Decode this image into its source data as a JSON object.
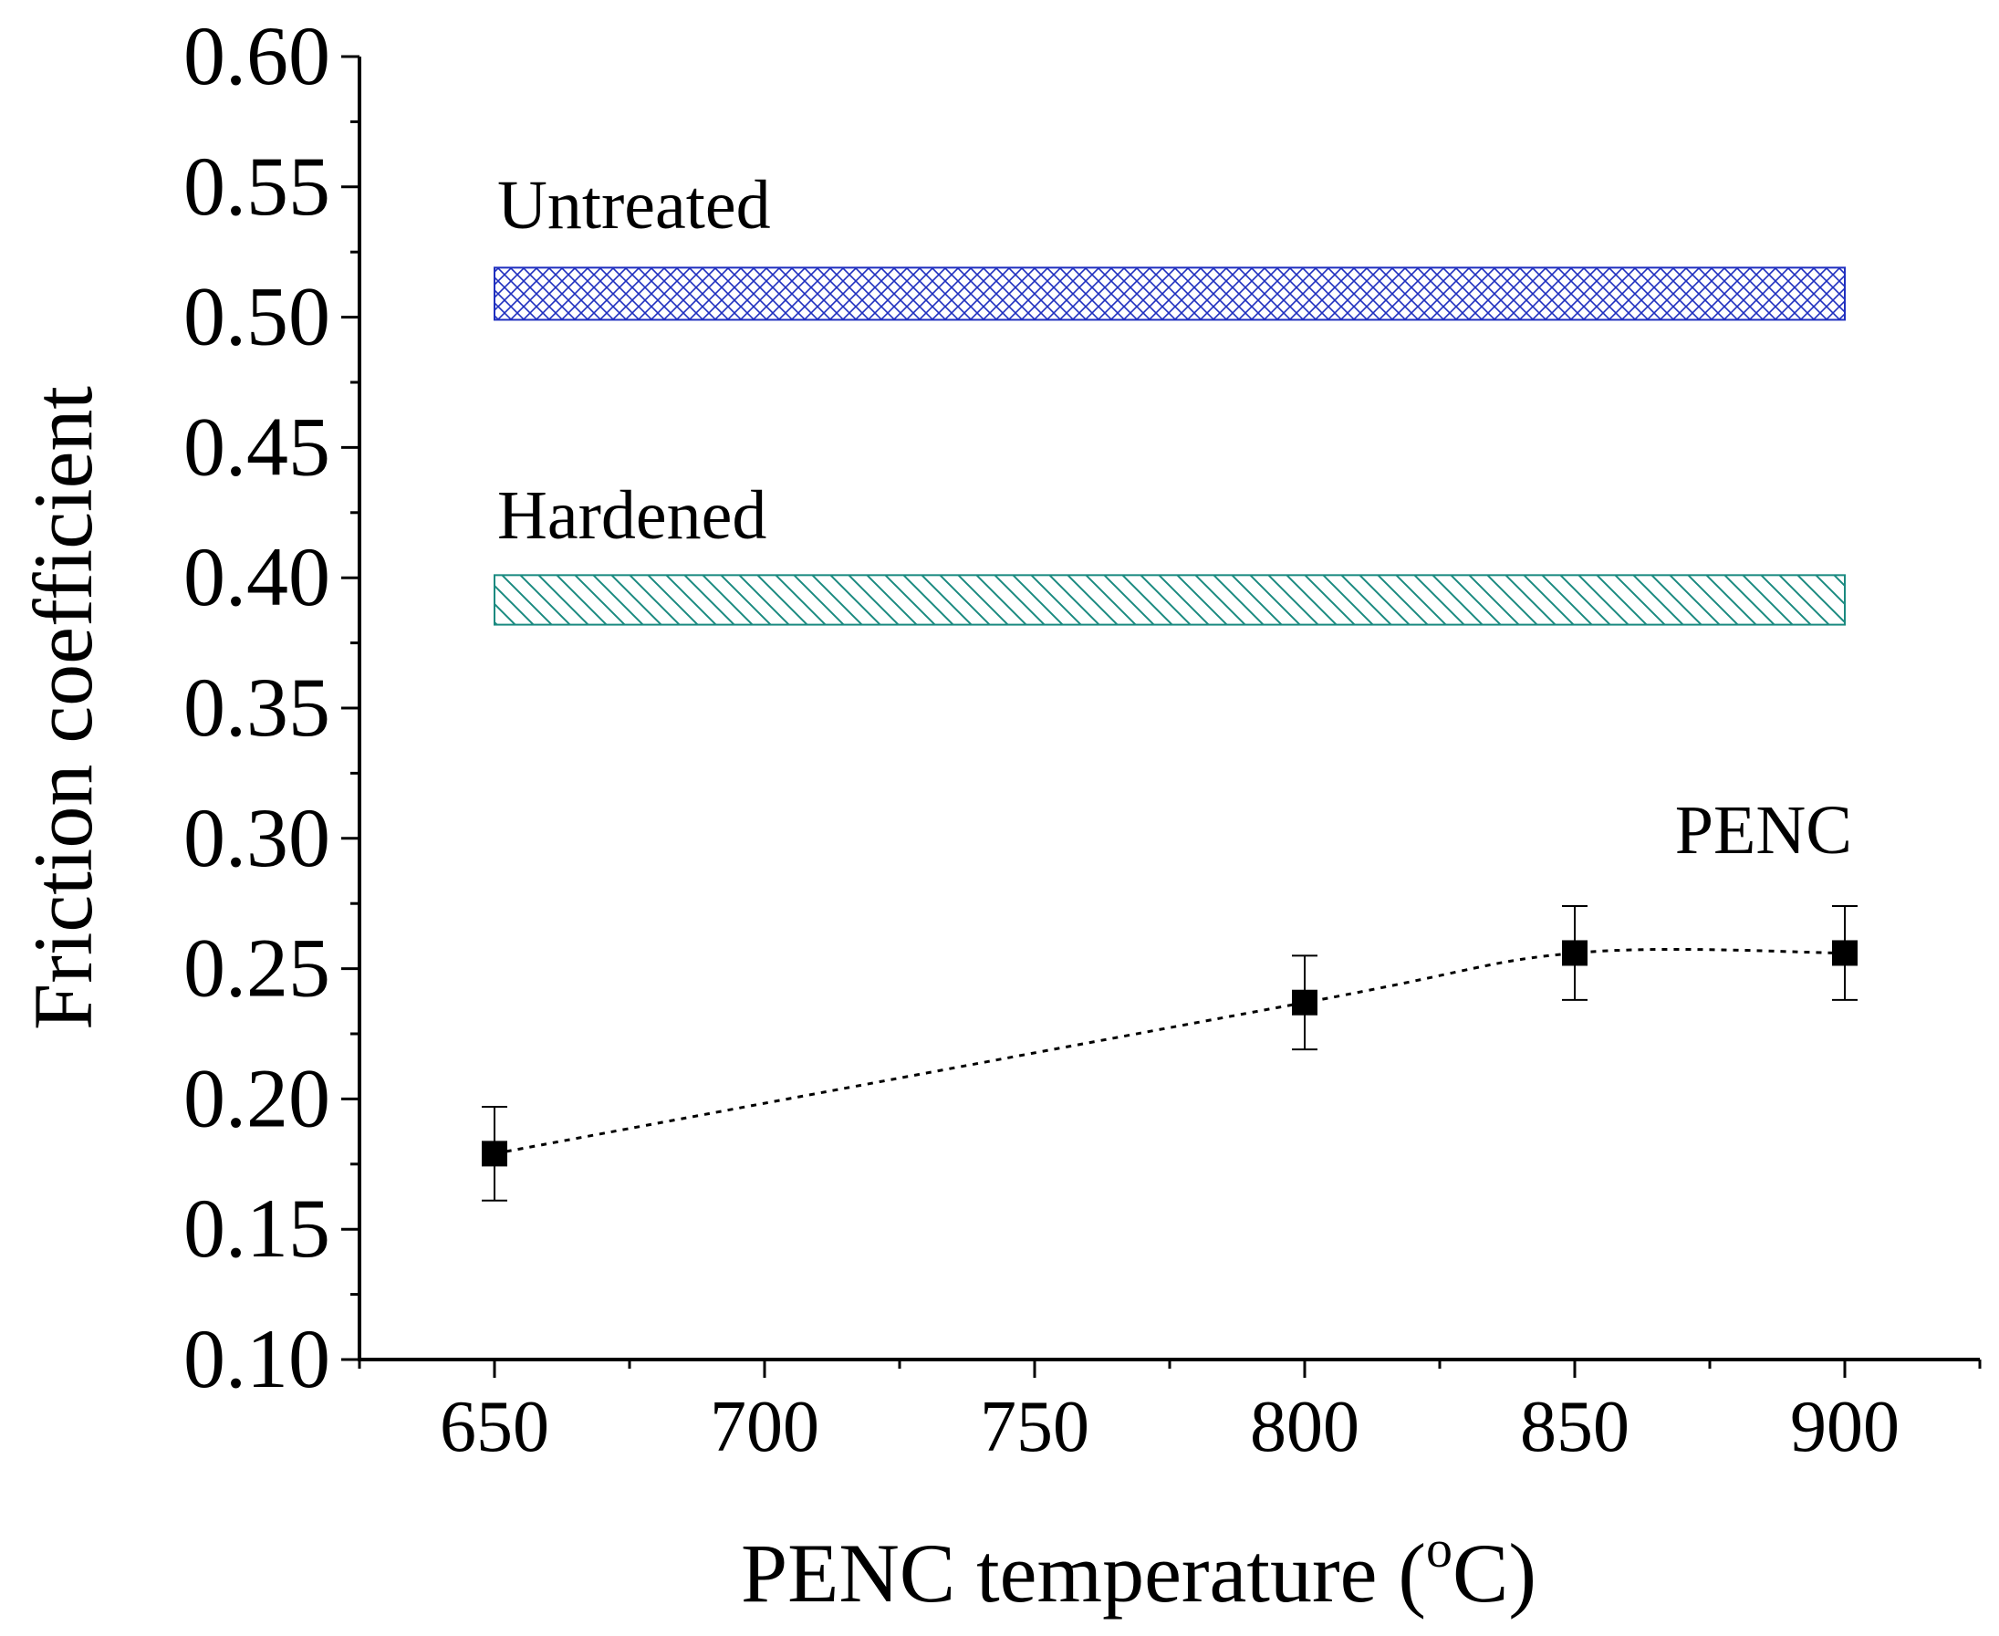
{
  "chart_data": {
    "type": "scatter",
    "title": "",
    "xlabel": "PENC temperature (",
    "xlabel_superscript": "o",
    "xlabel_suffix": "C)",
    "ylabel": "Friction coefficient",
    "xlim": [
      625,
      925
    ],
    "ylim": [
      0.1,
      0.6
    ],
    "x_ticks": [
      650,
      700,
      750,
      800,
      850,
      900
    ],
    "x_tick_labels": [
      "650",
      "700",
      "750",
      "800",
      "850",
      "900"
    ],
    "x_minor_step": 25,
    "y_ticks": [
      0.1,
      0.15,
      0.2,
      0.25,
      0.3,
      0.35,
      0.4,
      0.45,
      0.5,
      0.55,
      0.6
    ],
    "y_tick_labels": [
      "0.10",
      "0.15",
      "0.20",
      "0.25",
      "0.30",
      "0.35",
      "0.40",
      "0.45",
      "0.50",
      "0.55",
      "0.60"
    ],
    "y_minor_step": 0.025,
    "series": [
      {
        "name": "PENC",
        "x": [
          650,
          800,
          850,
          900
        ],
        "y": [
          0.179,
          0.237,
          0.256,
          0.256
        ],
        "error": [
          0.018,
          0.018,
          0.018,
          0.018
        ],
        "marker": "square",
        "color": "#000000",
        "trend": "dotted-curve"
      }
    ],
    "bands": [
      {
        "name": "Untreated",
        "x_range": [
          650,
          900
        ],
        "y_range": [
          0.499,
          0.519
        ],
        "pattern": "crosshatch",
        "color": "#1f2fbf"
      },
      {
        "name": "Hardened",
        "x_range": [
          650,
          900
        ],
        "y_range": [
          0.382,
          0.401
        ],
        "pattern": "diagonal",
        "color": "#1a8a80"
      }
    ],
    "annotations": [
      {
        "text": "Untreated",
        "anchor": "band-untreated"
      },
      {
        "text": "Hardened",
        "anchor": "band-hardened"
      },
      {
        "text": "PENC",
        "anchor": "series-penc"
      }
    ]
  }
}
